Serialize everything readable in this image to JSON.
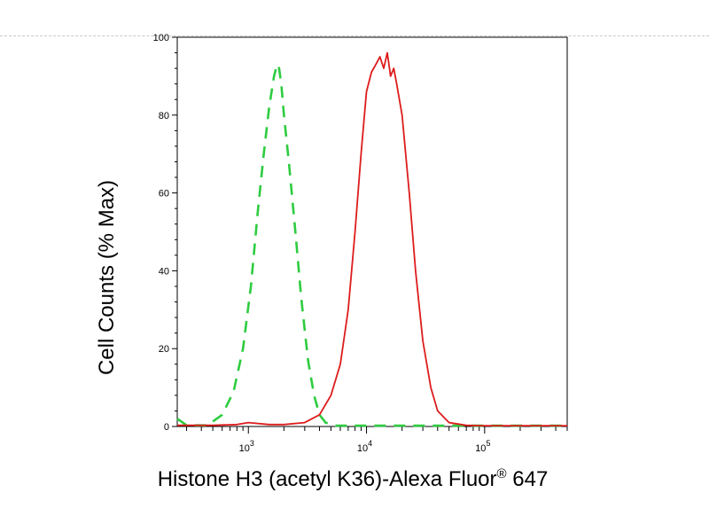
{
  "chart_data": {
    "type": "line",
    "title": "",
    "xlabel": "Histone H3 (acetyl K36)-Alexa Fluor",
    "xlabel_superscript": "®",
    "xlabel_suffix": " 647",
    "ylabel": "Cell Counts (% Max)",
    "xscale": "log",
    "xlim": [
      250,
      500000
    ],
    "ylim": [
      0,
      100
    ],
    "yticks": [
      0,
      20,
      40,
      60,
      80,
      100
    ],
    "xticks": [
      {
        "value": 1000,
        "base": "10",
        "exp": "3"
      },
      {
        "value": 10000,
        "base": "10",
        "exp": "4"
      },
      {
        "value": 100000,
        "base": "10",
        "exp": "5"
      }
    ],
    "grid": false,
    "series": [
      {
        "color": "#2ecc40",
        "dash": "dashed",
        "x": [
          250,
          300,
          450,
          600,
          750,
          900,
          1050,
          1200,
          1350,
          1500,
          1650,
          1750,
          1820,
          1900,
          2000,
          2200,
          2500,
          2800,
          3200,
          3600,
          4000,
          4500,
          5500,
          10000,
          30000,
          100000,
          500000
        ],
        "y": [
          2,
          0.3,
          0.3,
          3,
          9,
          20,
          36,
          55,
          70,
          82,
          90,
          93,
          92,
          88,
          80,
          68,
          50,
          33,
          17,
          8,
          3,
          1,
          0.2,
          0.2,
          0.2,
          0.2,
          0.2
        ]
      },
      {
        "color": "#dd1c1c",
        "dash": "solid",
        "x": [
          250,
          500,
          800,
          1000,
          1500,
          2000,
          3000,
          4000,
          5000,
          6000,
          7000,
          8000,
          9000,
          10000,
          11000,
          12000,
          13000,
          14000,
          15000,
          16000,
          17000,
          18000,
          20000,
          23000,
          26000,
          30000,
          35000,
          40000,
          50000,
          70000,
          100000,
          500000
        ],
        "y": [
          0.3,
          0.3,
          0.5,
          1,
          0.5,
          0.5,
          1,
          3,
          8,
          16,
          30,
          50,
          70,
          86,
          91,
          93,
          95,
          92,
          96,
          90,
          92,
          88,
          80,
          60,
          40,
          22,
          10,
          4,
          1,
          0.3,
          0.2,
          0.2
        ]
      }
    ]
  }
}
